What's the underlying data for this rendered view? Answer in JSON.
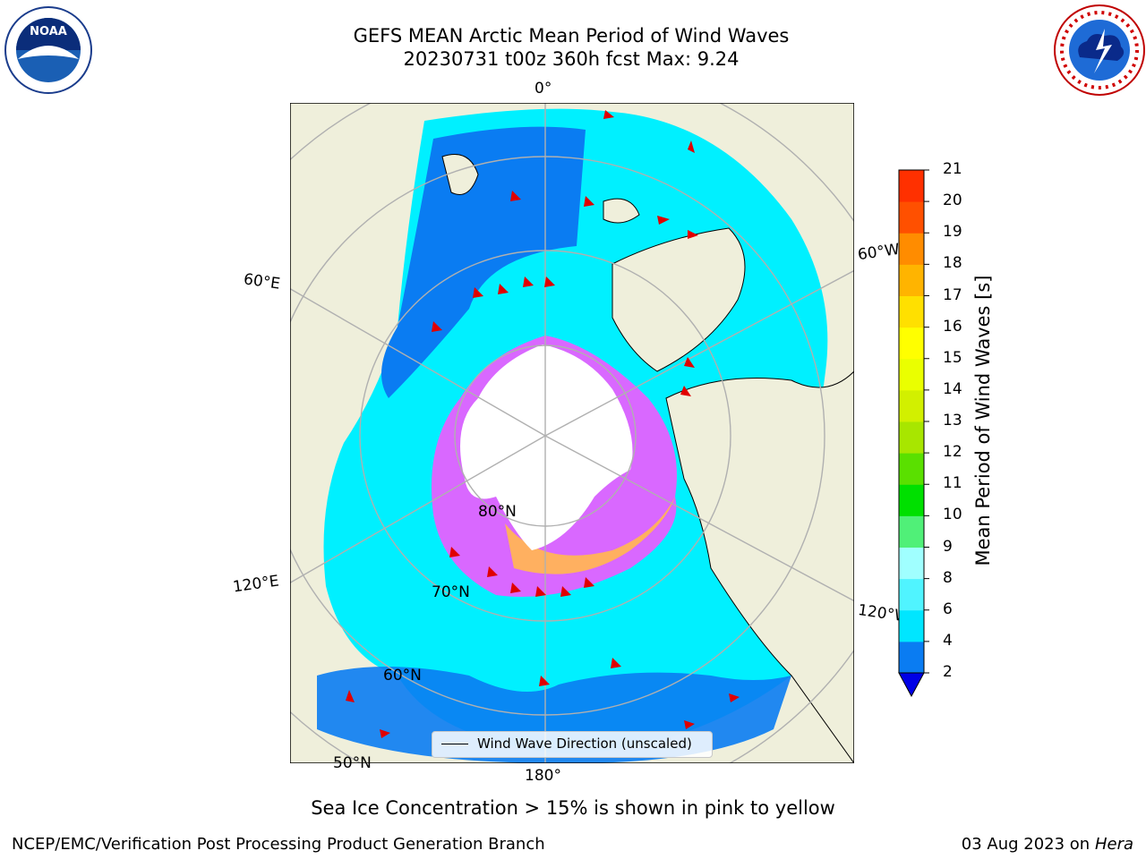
{
  "title_line1": "GEFS MEAN Arctic Mean Period of Wind Waves",
  "title_line2": "20230731 t00z 360h fcst   Max: 9.24",
  "logos": {
    "left": "noaa-logo",
    "right": "national-weather-service-logo"
  },
  "map": {
    "projection": "north-polar-stereographic",
    "lon_labels": [
      "0°",
      "60°W",
      "120°W",
      "180°",
      "120°E",
      "60°E"
    ],
    "lat_labels": [
      "80°N",
      "70°N",
      "60°N",
      "50°N"
    ],
    "colors": {
      "land": "#efefdb",
      "ice_free_center": "#ffffff",
      "grid": "#b0b0b0",
      "arrows": "#e00000"
    }
  },
  "legend": {
    "label": "Wind Wave Direction (unscaled)"
  },
  "colorbar": {
    "label": "Mean Period of Wind Waves [s]",
    "ticks": [
      "2",
      "4",
      "6",
      "8",
      "9",
      "10",
      "11",
      "12",
      "13",
      "14",
      "15",
      "16",
      "17",
      "18",
      "19",
      "20",
      "21"
    ],
    "colors": [
      "#0a7cf2",
      "#00e6ff",
      "#50f4ff",
      "#a0ffff",
      "#50f078",
      "#00e000",
      "#5ae000",
      "#a8e600",
      "#d2f000",
      "#eaff00",
      "#ffff00",
      "#ffe000",
      "#ffb400",
      "#ff8c00",
      "#ff5000",
      "#ff3000",
      "#ff0000"
    ],
    "extend_color": "#0000e6"
  },
  "caption": "Sea Ice Concentration > 15% is shown in pink to yellow",
  "footer": {
    "left": "NCEP/EMC/Verification Post Processing Product Generation Branch",
    "right_prefix": "03 Aug 2023 on",
    "right_machine": "Hera"
  }
}
